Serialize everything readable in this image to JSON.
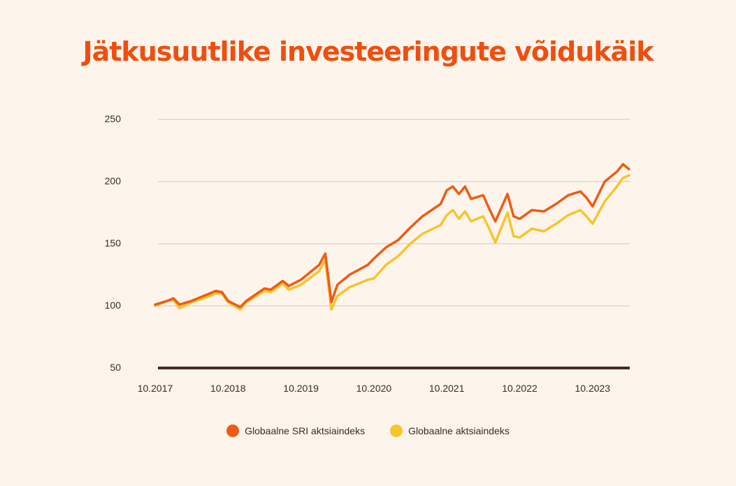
{
  "title": "Jätkusuutlike investeeringute võidukäik",
  "colors": {
    "title": "#f04e0f",
    "sri": "#f05a14",
    "global": "#f7c42c",
    "grid": "#d9c2b4",
    "baseline": "#4a2820",
    "text": "#3a2a22"
  },
  "chart_data": {
    "type": "line",
    "title": "",
    "xlabel": "",
    "ylabel": "",
    "ylim": [
      50,
      250
    ],
    "yticks": [
      50,
      100,
      150,
      200,
      250
    ],
    "xticks": [
      "10.2017",
      "10.2018",
      "10.2019",
      "10.2020",
      "10.2021",
      "10.2022",
      "10.2023"
    ],
    "grid": true,
    "legend_position": "bottom",
    "series": [
      {
        "name": "Globaalne SRI aktsiaindeks",
        "color": "#f05a14",
        "points": [
          [
            "2017-10",
            101
          ],
          [
            "2017-12",
            104
          ],
          [
            "2018-01",
            106
          ],
          [
            "2018-02",
            101
          ],
          [
            "2018-04",
            104
          ],
          [
            "2018-06",
            108
          ],
          [
            "2018-08",
            112
          ],
          [
            "2018-09",
            111
          ],
          [
            "2018-10",
            104
          ],
          [
            "2018-12",
            99
          ],
          [
            "2019-01",
            104
          ],
          [
            "2019-04",
            114
          ],
          [
            "2019-05",
            113
          ],
          [
            "2019-07",
            120
          ],
          [
            "2019-08",
            116
          ],
          [
            "2019-10",
            121
          ],
          [
            "2020-01",
            133
          ],
          [
            "2020-02",
            142
          ],
          [
            "2020-03",
            103
          ],
          [
            "2020-04",
            117
          ],
          [
            "2020-06",
            125
          ],
          [
            "2020-09",
            133
          ],
          [
            "2020-10",
            138
          ],
          [
            "2020-12",
            147
          ],
          [
            "2021-02",
            153
          ],
          [
            "2021-04",
            163
          ],
          [
            "2021-06",
            172
          ],
          [
            "2021-09",
            182
          ],
          [
            "2021-10",
            193
          ],
          [
            "2021-11",
            196
          ],
          [
            "2021-12",
            190
          ],
          [
            "2022-01",
            196
          ],
          [
            "2022-02",
            186
          ],
          [
            "2022-04",
            189
          ],
          [
            "2022-05",
            178
          ],
          [
            "2022-06",
            168
          ],
          [
            "2022-08",
            190
          ],
          [
            "2022-09",
            172
          ],
          [
            "2022-10",
            170
          ],
          [
            "2022-12",
            177
          ],
          [
            "2023-02",
            176
          ],
          [
            "2023-04",
            182
          ],
          [
            "2023-06",
            189
          ],
          [
            "2023-08",
            192
          ],
          [
            "2023-09",
            187
          ],
          [
            "2023-10",
            180
          ],
          [
            "2023-12",
            200
          ],
          [
            "2024-02",
            208
          ],
          [
            "2024-03",
            214
          ],
          [
            "2024-04",
            210
          ]
        ]
      },
      {
        "name": "Globaalne aktsiaindeks",
        "color": "#f7c42c",
        "points": [
          [
            "2017-10",
            100
          ],
          [
            "2017-12",
            104
          ],
          [
            "2018-01",
            105
          ],
          [
            "2018-02",
            98
          ],
          [
            "2018-04",
            103
          ],
          [
            "2018-06",
            106
          ],
          [
            "2018-08",
            110
          ],
          [
            "2018-09",
            110
          ],
          [
            "2018-10",
            103
          ],
          [
            "2018-12",
            97
          ],
          [
            "2019-01",
            103
          ],
          [
            "2019-04",
            112
          ],
          [
            "2019-05",
            111
          ],
          [
            "2019-07",
            118
          ],
          [
            "2019-08",
            113
          ],
          [
            "2019-10",
            117
          ],
          [
            "2020-01",
            128
          ],
          [
            "2020-02",
            137
          ],
          [
            "2020-03",
            97
          ],
          [
            "2020-04",
            108
          ],
          [
            "2020-06",
            115
          ],
          [
            "2020-09",
            121
          ],
          [
            "2020-10",
            122
          ],
          [
            "2020-12",
            133
          ],
          [
            "2021-02",
            140
          ],
          [
            "2021-04",
            150
          ],
          [
            "2021-06",
            158
          ],
          [
            "2021-09",
            165
          ],
          [
            "2021-10",
            173
          ],
          [
            "2021-11",
            177
          ],
          [
            "2021-12",
            170
          ],
          [
            "2022-01",
            176
          ],
          [
            "2022-02",
            168
          ],
          [
            "2022-04",
            172
          ],
          [
            "2022-05",
            162
          ],
          [
            "2022-06",
            151
          ],
          [
            "2022-08",
            175
          ],
          [
            "2022-09",
            156
          ],
          [
            "2022-10",
            155
          ],
          [
            "2022-12",
            162
          ],
          [
            "2023-02",
            160
          ],
          [
            "2023-04",
            166
          ],
          [
            "2023-06",
            173
          ],
          [
            "2023-08",
            177
          ],
          [
            "2023-09",
            172
          ],
          [
            "2023-10",
            166
          ],
          [
            "2023-12",
            184
          ],
          [
            "2024-02",
            196
          ],
          [
            "2024-03",
            203
          ],
          [
            "2024-04",
            205
          ]
        ]
      }
    ]
  }
}
